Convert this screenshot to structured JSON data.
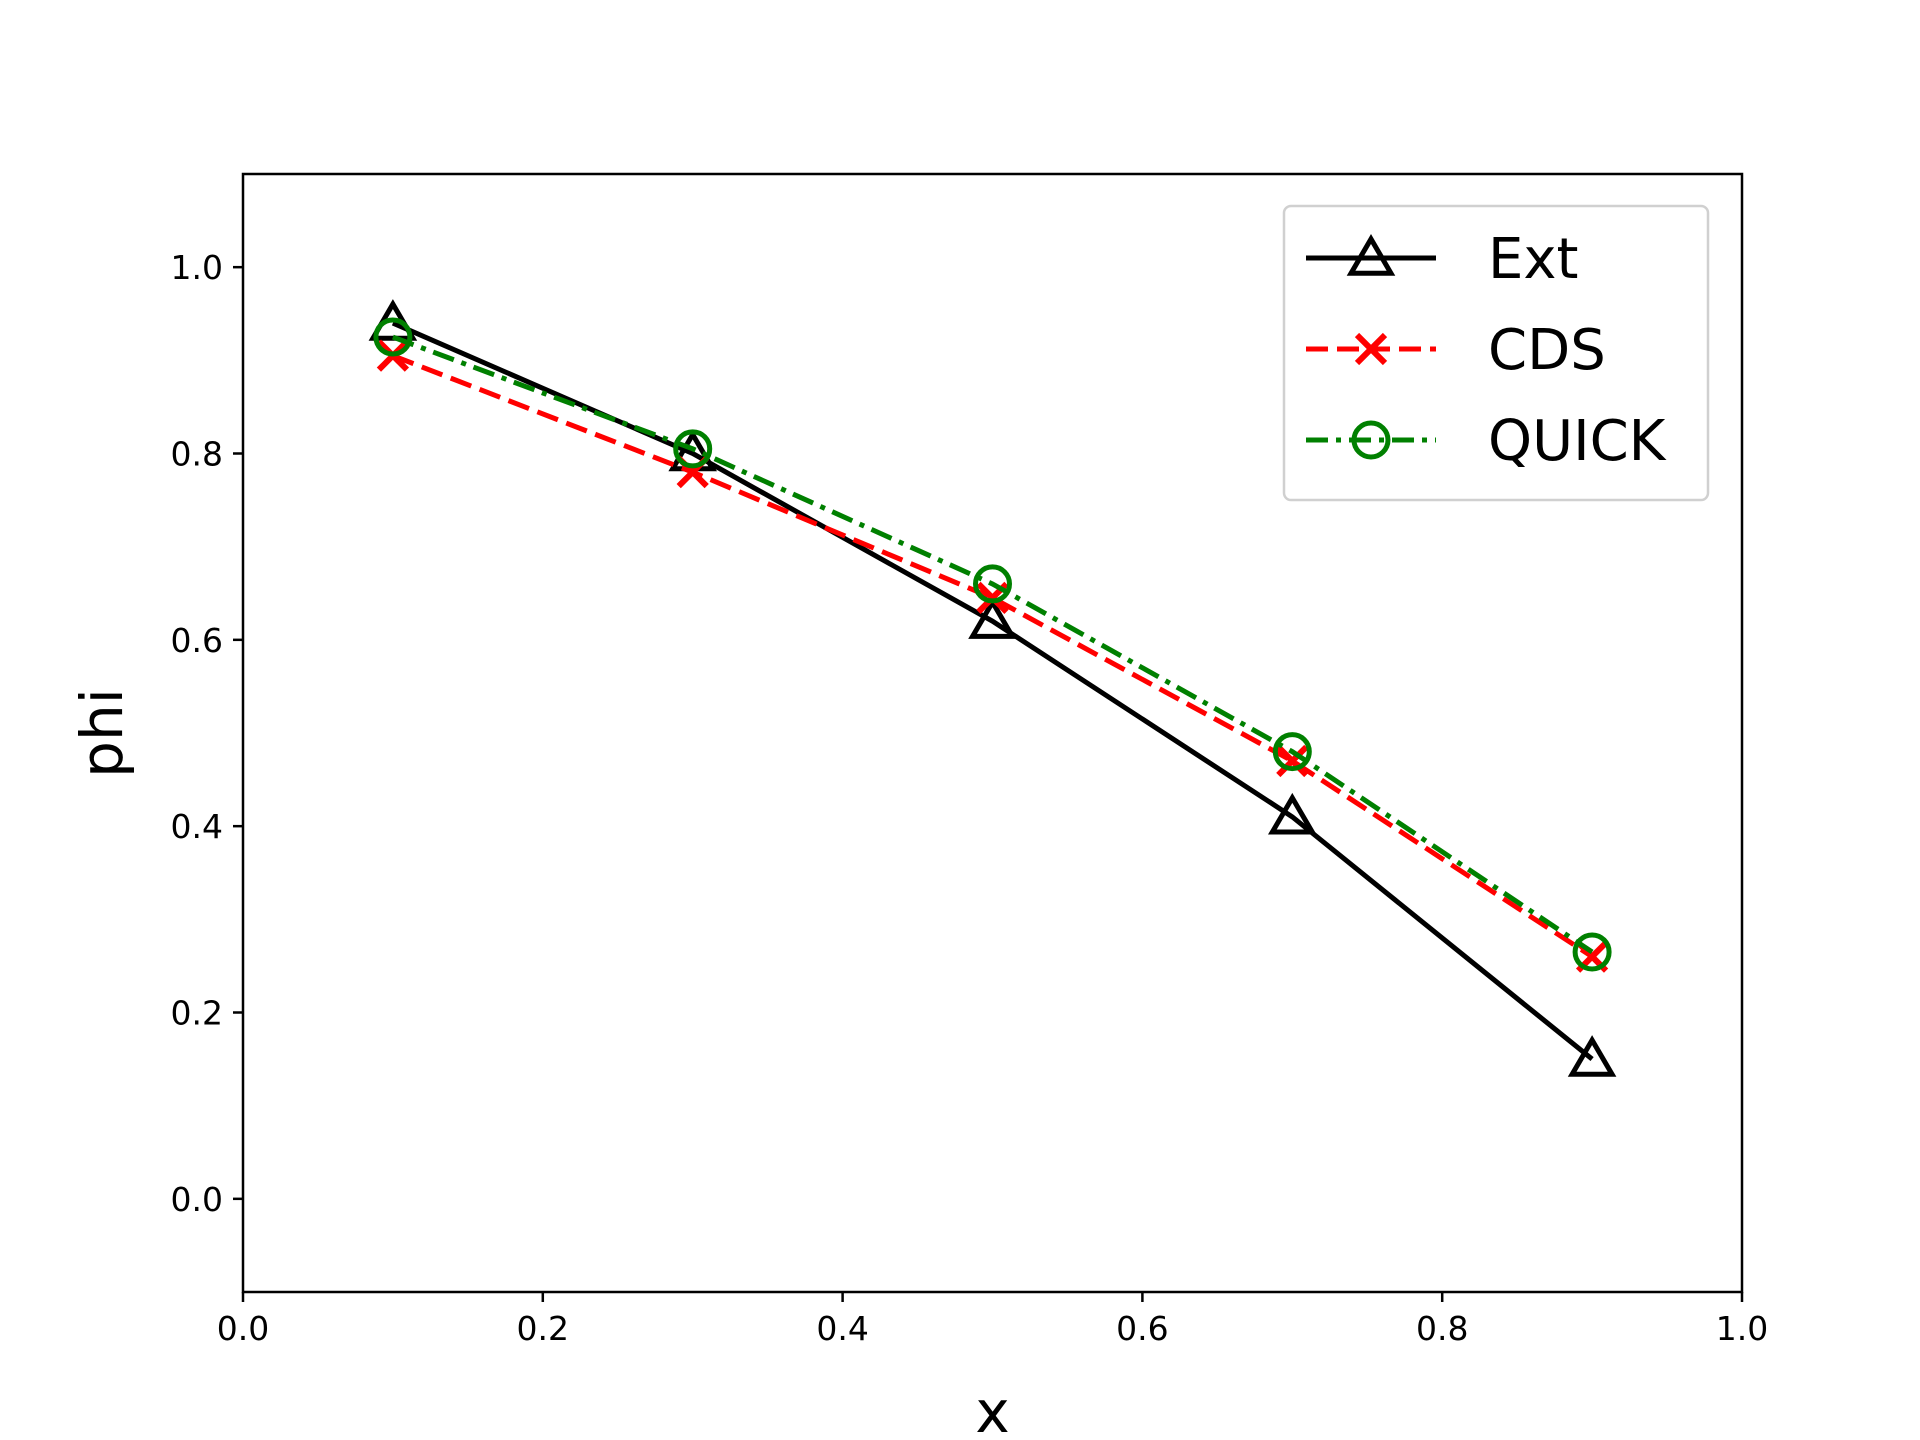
{
  "chart_data": {
    "type": "line",
    "title": "",
    "xlabel": "x",
    "ylabel": "phi",
    "xlim": [
      0.0,
      1.0
    ],
    "ylim": [
      -0.1,
      1.1
    ],
    "xticks": [
      "0.0",
      "0.2",
      "0.4",
      "0.6",
      "0.8",
      "1.0"
    ],
    "yticks": [
      "0.0",
      "0.2",
      "0.4",
      "0.6",
      "0.8",
      "1.0"
    ],
    "grid": false,
    "legend_position": "top-right",
    "x": [
      0.1,
      0.3,
      0.5,
      0.7,
      0.9
    ],
    "series": [
      {
        "name": "Ext",
        "values": [
          0.94,
          0.8,
          0.62,
          0.41,
          0.15
        ],
        "color": "#000000",
        "line_style": "solid",
        "marker": "triangle-open"
      },
      {
        "name": "CDS",
        "values": [
          0.905,
          0.78,
          0.645,
          0.47,
          0.26
        ],
        "color": "#ff0000",
        "line_style": "dashed",
        "marker": "x"
      },
      {
        "name": "QUICK",
        "values": [
          0.925,
          0.805,
          0.66,
          0.48,
          0.265
        ],
        "color": "#008000",
        "line_style": "dash-dot",
        "marker": "circle-open"
      }
    ]
  }
}
